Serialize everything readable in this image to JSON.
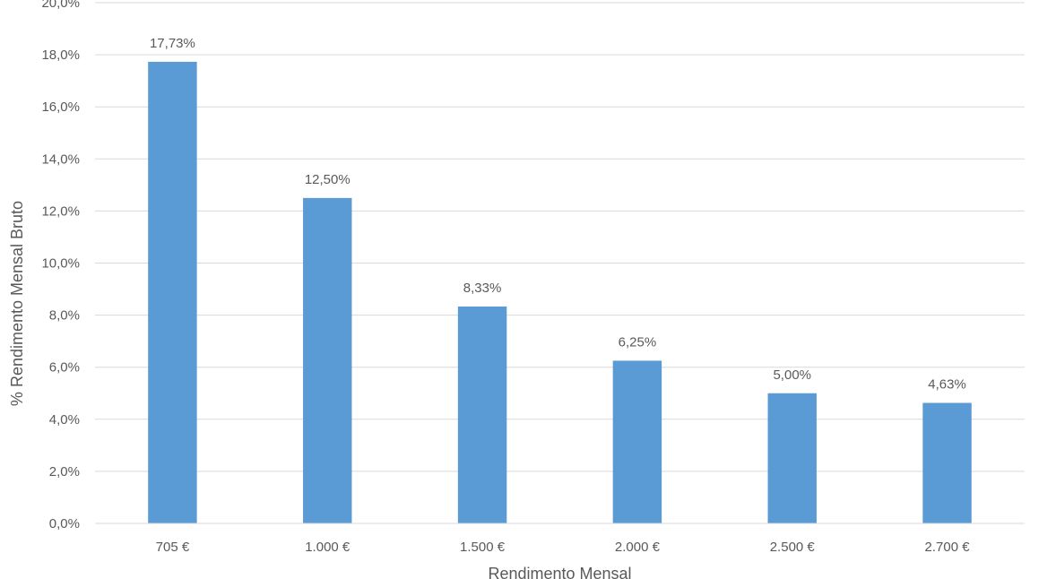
{
  "chart_data": {
    "type": "bar",
    "categories": [
      "705 €",
      "1.000 €",
      "1.500 €",
      "2.000 €",
      "2.500 €",
      "2.700 €"
    ],
    "values": [
      17.73,
      12.5,
      8.33,
      6.25,
      5.0,
      4.63
    ],
    "data_labels": [
      "17,73%",
      "12,50%",
      "8,33%",
      "6,25%",
      "5,00%",
      "4,63%"
    ],
    "title": "",
    "xlabel": "Rendimento Mensal",
    "ylabel": "% Rendimento Mensal Bruto",
    "ylim": [
      0,
      20
    ],
    "yticks": [
      0,
      2,
      4,
      6,
      8,
      10,
      12,
      14,
      16,
      18,
      20
    ],
    "ytick_labels": [
      "0,0%",
      "2,0%",
      "4,0%",
      "6,0%",
      "8,0%",
      "10,0%",
      "12,0%",
      "14,0%",
      "16,0%",
      "18,0%",
      "20,0%"
    ],
    "grid": true,
    "legend": "none",
    "bar_color": "#5b9bd5",
    "grid_color": "#d9d9d9",
    "text_color": "#595959"
  }
}
